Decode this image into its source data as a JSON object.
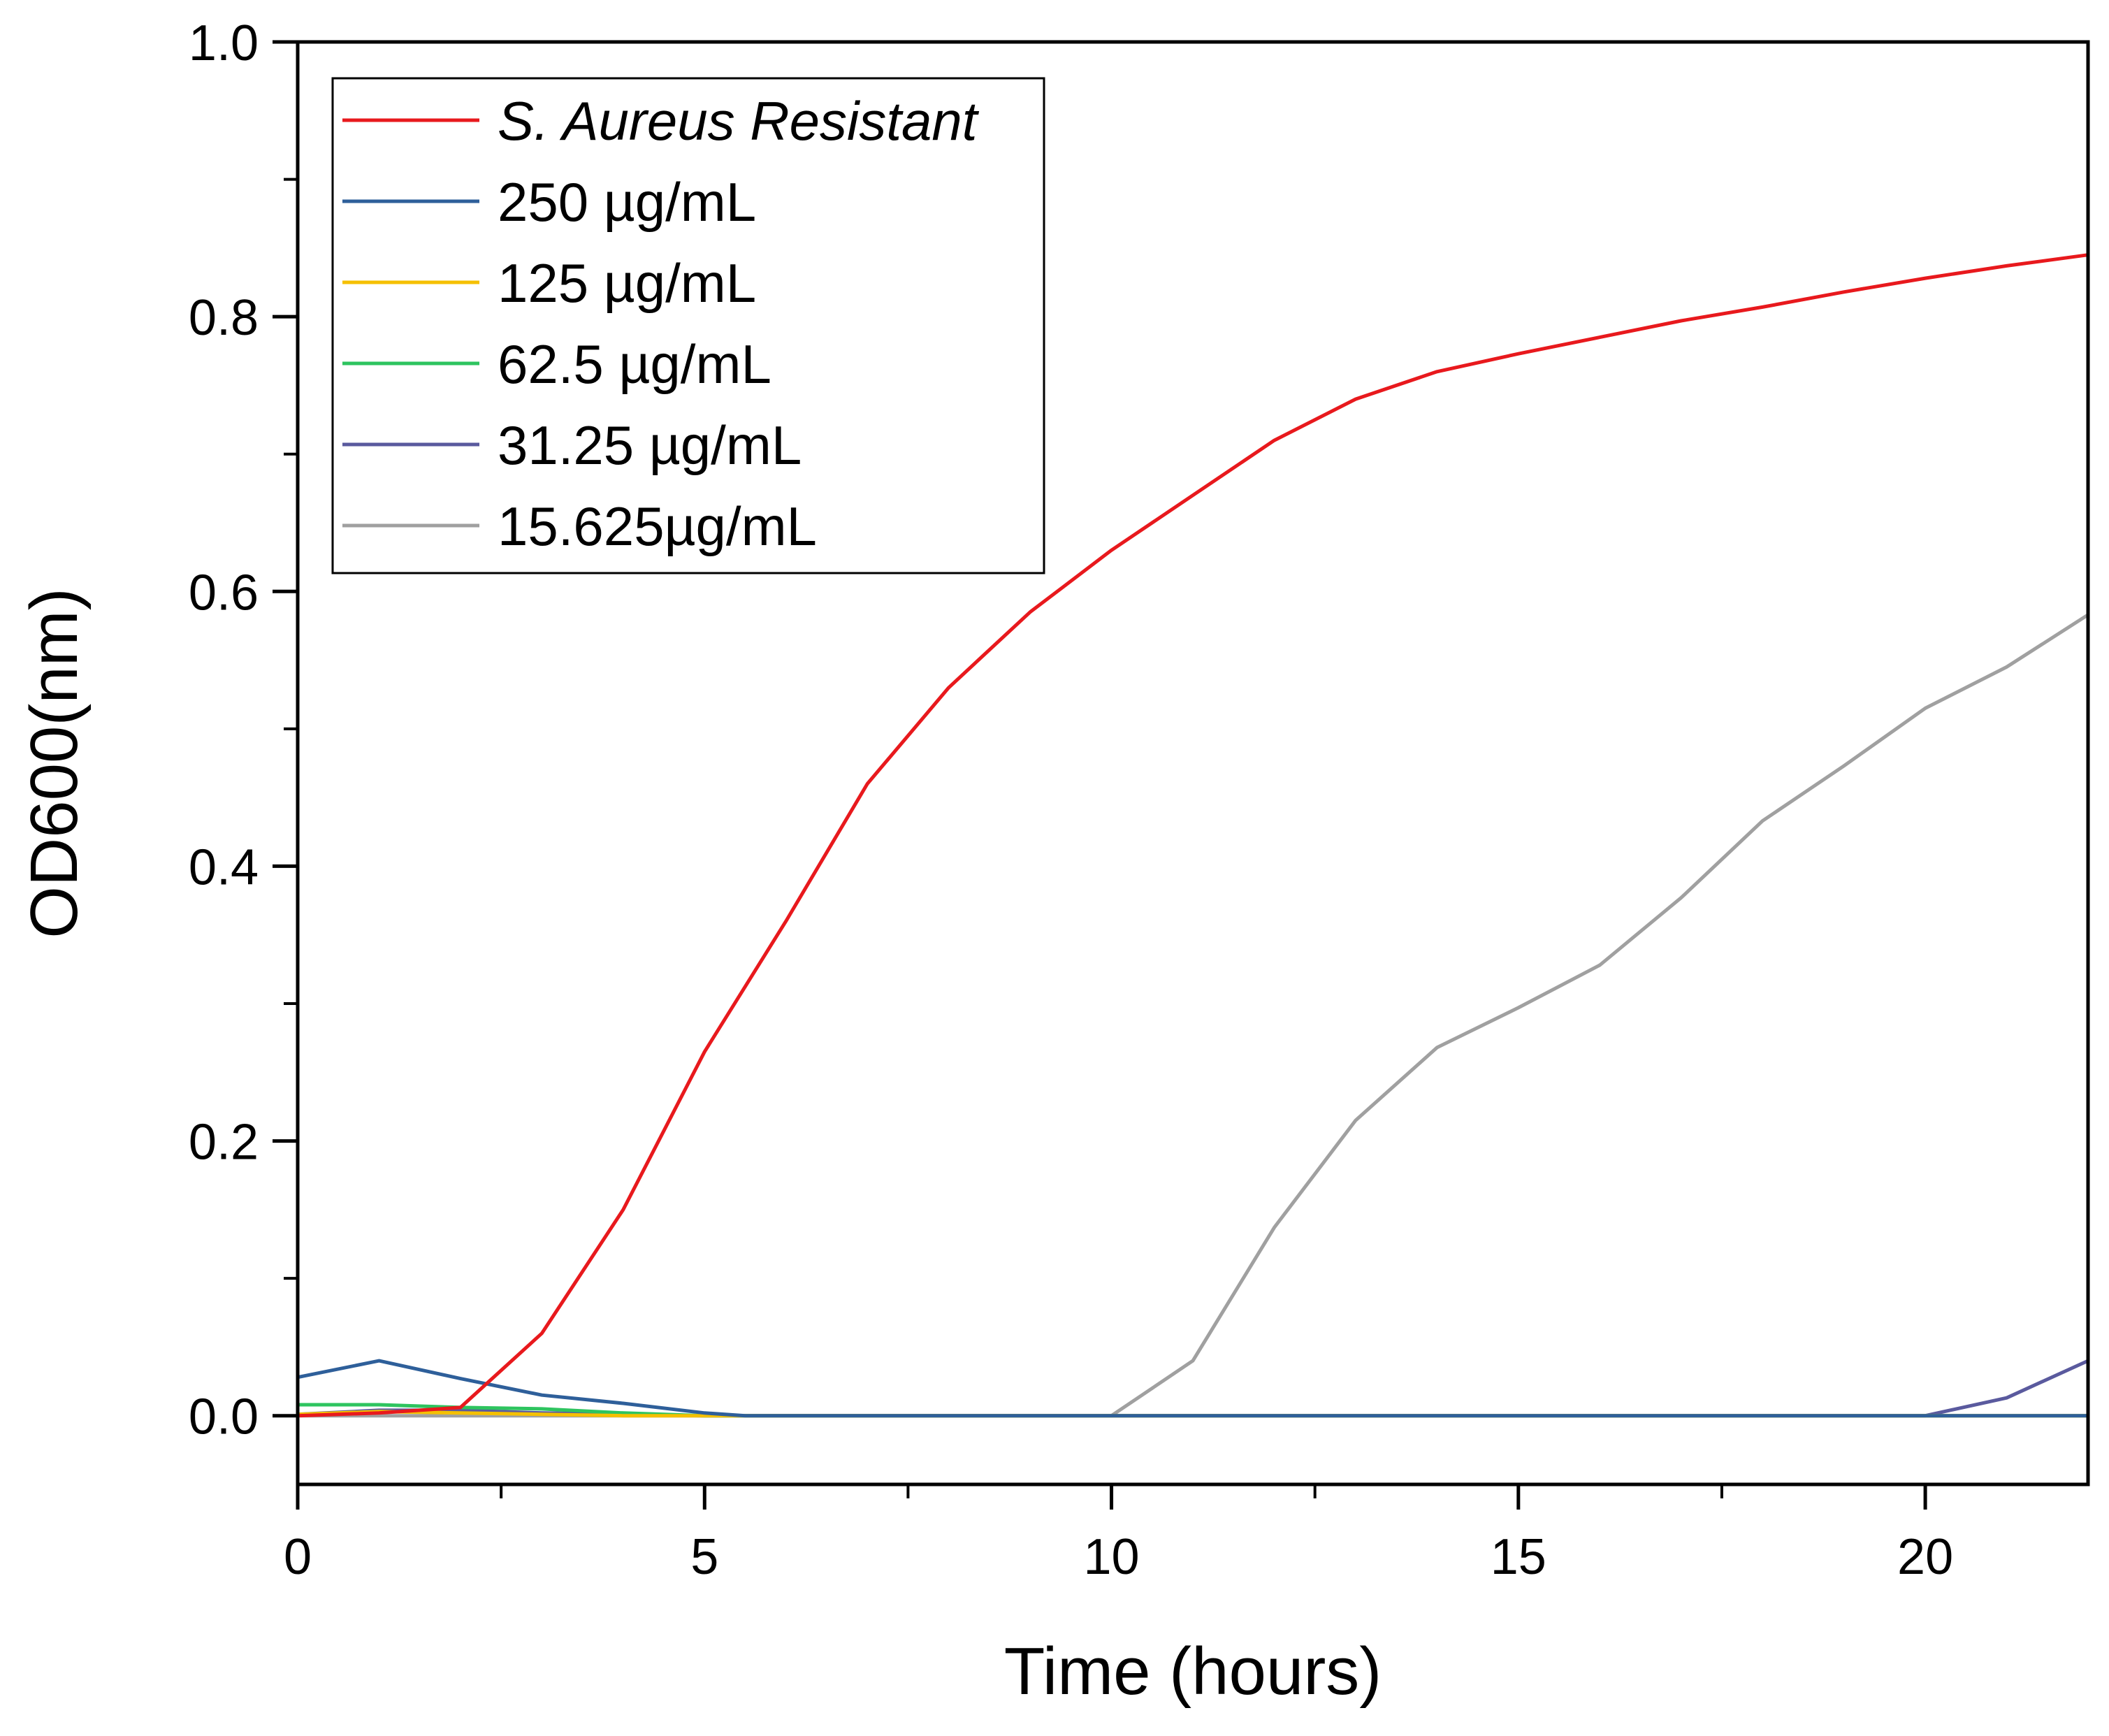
{
  "chart_data": {
    "type": "line",
    "title": "",
    "xlabel": "Time (hours)",
    "ylabel": "OD600(nm)",
    "xlim": [
      0,
      22
    ],
    "ylim": [
      -0.05,
      1.0
    ],
    "grid": false,
    "legend_position": "top-left",
    "x_ticks": [
      0,
      5,
      10,
      15,
      20
    ],
    "x_tick_labels": [
      "0",
      "5",
      "10",
      "15",
      "20"
    ],
    "y_ticks": [
      0.0,
      0.2,
      0.4,
      0.6,
      0.8,
      1.0
    ],
    "y_tick_labels": [
      "0.0",
      "0.2",
      "0.4",
      "0.6",
      "0.8",
      "1.0"
    ],
    "series": [
      {
        "name": "S. Aureus Resistant",
        "italic": true,
        "color": "#e8191d",
        "x": [
          0,
          1,
          2,
          3,
          4,
          5,
          6,
          7,
          8,
          9,
          10,
          11,
          12,
          13,
          14,
          15,
          16,
          17,
          18,
          19,
          20,
          21,
          22
        ],
        "y": [
          0.0,
          0.002,
          0.006,
          0.06,
          0.15,
          0.265,
          0.36,
          0.46,
          0.53,
          0.585,
          0.63,
          0.67,
          0.71,
          0.74,
          0.76,
          0.773,
          0.785,
          0.797,
          0.807,
          0.818,
          0.828,
          0.837,
          0.845
        ]
      },
      {
        "name": "250 µg/mL",
        "italic": false,
        "color": "#2e5f9a",
        "x": [
          0,
          1,
          2,
          3,
          4,
          5,
          5.5,
          6,
          22
        ],
        "y": [
          0.028,
          0.04,
          0.027,
          0.015,
          0.009,
          0.002,
          0.0,
          0.0,
          0.0
        ]
      },
      {
        "name": "125 µg/mL",
        "italic": false,
        "color": "#f5c000",
        "x": [
          0,
          1,
          2,
          3,
          4,
          5,
          22
        ],
        "y": [
          0.001,
          0.003,
          0.002,
          0.001,
          0.0,
          0.0,
          0.0
        ]
      },
      {
        "name": "62.5 µg/mL",
        "italic": false,
        "color": "#2ec45f",
        "x": [
          0,
          1,
          2,
          3,
          4,
          5,
          22
        ],
        "y": [
          0.008,
          0.008,
          0.006,
          0.005,
          0.002,
          0.0,
          0.0
        ]
      },
      {
        "name": "31.25 µg/mL",
        "italic": false,
        "color": "#5a5a9e",
        "x": [
          0,
          1,
          2,
          3,
          4,
          5,
          10,
          15,
          20,
          21,
          22
        ],
        "y": [
          0.001,
          0.004,
          0.004,
          0.002,
          0.001,
          0.0,
          0.0,
          0.0,
          0.0,
          0.013,
          0.04
        ]
      },
      {
        "name": "15.625µg/mL",
        "italic": false,
        "color": "#a0a0a0",
        "x": [
          0,
          1,
          2,
          3,
          4,
          5,
          6,
          7,
          8,
          9,
          10,
          11,
          12,
          13,
          14,
          15,
          16,
          17,
          18,
          19,
          20,
          21,
          22
        ],
        "y": [
          0.0,
          0.0,
          0.0,
          0.0,
          0.0,
          0.0,
          0.0,
          0.0,
          0.0,
          0.0,
          0.0,
          0.04,
          0.137,
          0.215,
          0.268,
          0.297,
          0.328,
          0.377,
          0.433,
          0.473,
          0.515,
          0.545,
          0.583
        ]
      }
    ]
  }
}
